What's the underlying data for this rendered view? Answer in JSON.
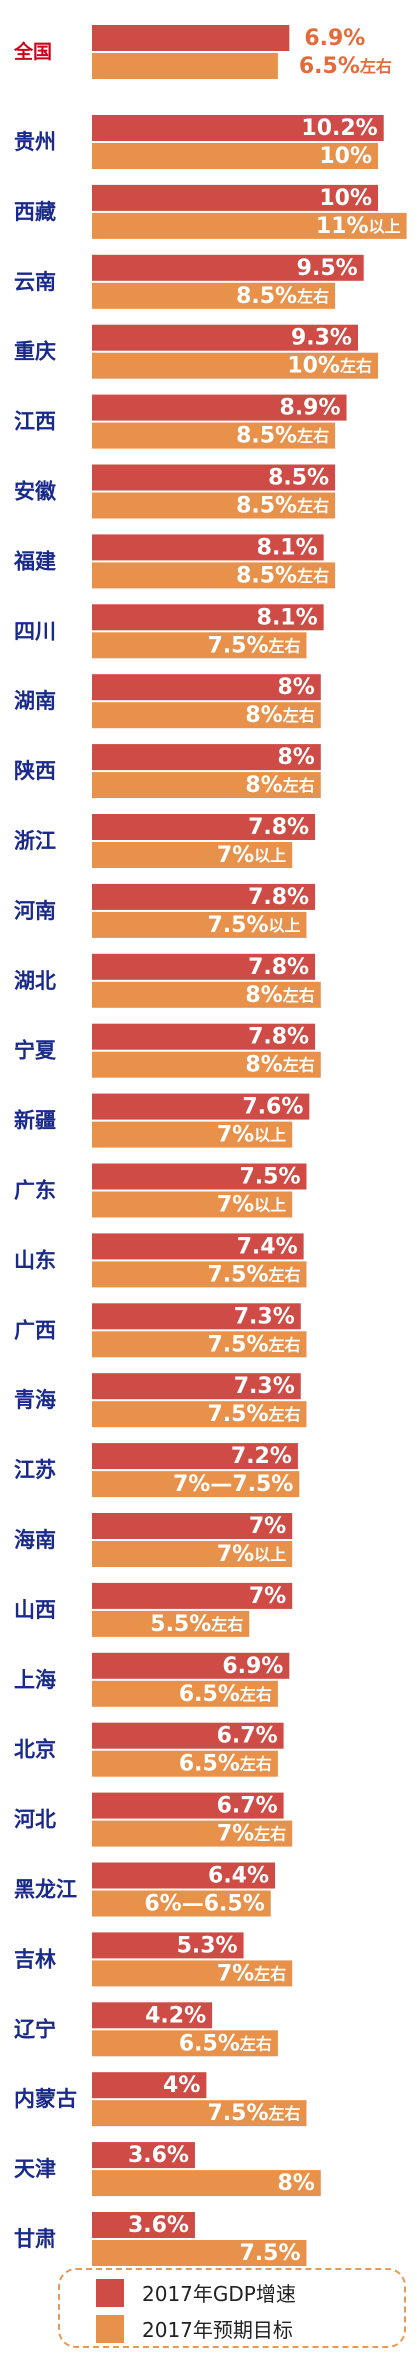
{
  "colors": {
    "gdp_bar": "#cf4b45",
    "target_bar": "#e8914a",
    "national_label": "#d0021b",
    "province_label": "#1a2a8a",
    "national_value_text": "#e36b3a",
    "bar_value_text": "#ffffff"
  },
  "legend": {
    "gdp_label": "2017年GDP增速",
    "target_label": "2017年预期目标"
  },
  "chart_data": {
    "type": "bar",
    "orientation": "horizontal",
    "legend_position": "bottom",
    "series": [
      {
        "name": "2017年GDP增速",
        "values": [
          6.9,
          10.2,
          10,
          9.5,
          9.3,
          8.9,
          8.5,
          8.1,
          8.1,
          8,
          8,
          7.8,
          7.8,
          7.8,
          7.8,
          7.6,
          7.5,
          7.4,
          7.3,
          7.3,
          7.2,
          7,
          7,
          6.9,
          6.7,
          6.7,
          6.4,
          5.3,
          4.2,
          4,
          3.6,
          3.6
        ],
        "labels": [
          "6.9%",
          "10.2%",
          "10%",
          "9.5%",
          "9.3%",
          "8.9%",
          "8.5%",
          "8.1%",
          "8.1%",
          "8%",
          "8%",
          "7.8%",
          "7.8%",
          "7.8%",
          "7.8%",
          "7.6%",
          "7.5%",
          "7.4%",
          "7.3%",
          "7.3%",
          "7.2%",
          "7%",
          "7%",
          "6.9%",
          "6.7%",
          "6.7%",
          "6.4%",
          "5.3%",
          "4.2%",
          "4%",
          "3.6%",
          "3.6%"
        ]
      },
      {
        "name": "2017年预期目标",
        "values": [
          6.5,
          10,
          11,
          8.5,
          10,
          8.5,
          8.5,
          8.5,
          7.5,
          8,
          8,
          7,
          7.5,
          8,
          8,
          7,
          7,
          7.5,
          7.5,
          7.5,
          7.25,
          7,
          5.5,
          6.5,
          6.5,
          7,
          6.25,
          7,
          6.5,
          7.5,
          8,
          7.5
        ],
        "labels": [
          "6.5%左右",
          "10%",
          "11%以上",
          "8.5%左右",
          "10%左右",
          "8.5%左右",
          "8.5%左右",
          "8.5%左右",
          "7.5%左右",
          "8%左右",
          "8%左右",
          "7%以上",
          "7.5%以上",
          "8%左右",
          "8%左右",
          "7%以上",
          "7%以上",
          "7.5%左右",
          "7.5%左右",
          "7.5%左右",
          "7%—7.5%",
          "7%以上",
          "5.5%左右",
          "6.5%左右",
          "6.5%左右",
          "7%左右",
          "6%—6.5%",
          "7%左右",
          "6.5%左右",
          "7.5%左右",
          "8%",
          "7.5%"
        ]
      }
    ],
    "categories": [
      "全国",
      "贵州",
      "西藏",
      "云南",
      "重庆",
      "江西",
      "安徽",
      "福建",
      "四川",
      "湖南",
      "陕西",
      "浙江",
      "河南",
      "湖北",
      "宁夏",
      "新疆",
      "广东",
      "山东",
      "广西",
      "青海",
      "江苏",
      "海南",
      "山西",
      "上海",
      "北京",
      "河北",
      "黑龙江",
      "吉林",
      "辽宁",
      "内蒙古",
      "天津",
      "甘肃"
    ]
  }
}
